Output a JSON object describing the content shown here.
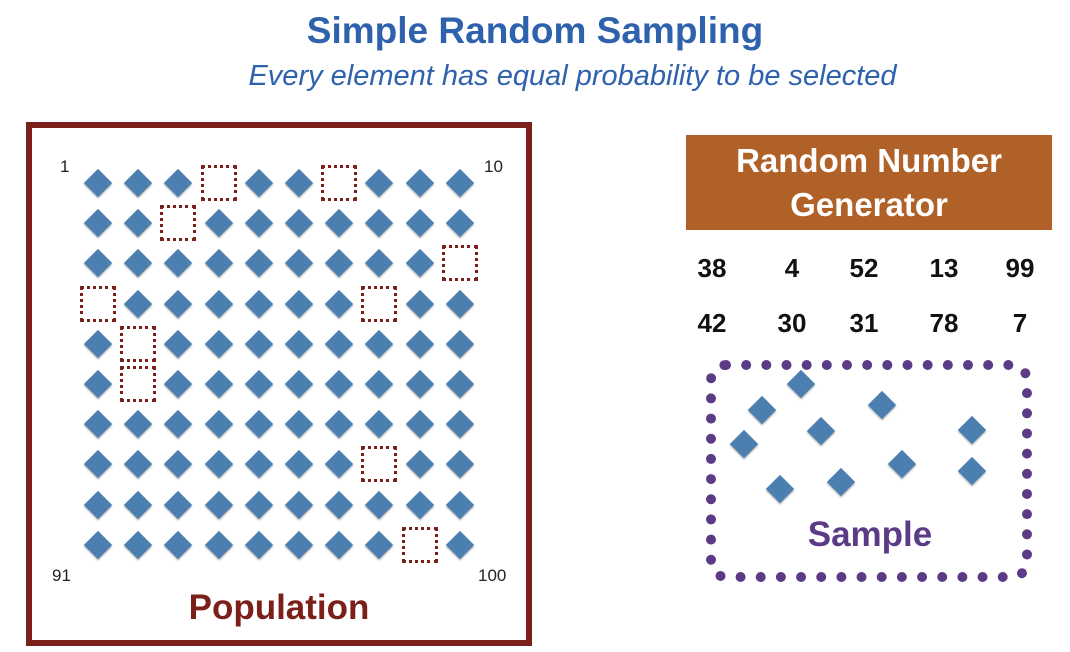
{
  "header": {
    "title": "Simple Random Sampling",
    "subtitle": "Every element has equal probability to be selected"
  },
  "population": {
    "label": "Population",
    "corner_labels": {
      "top_left": "1",
      "top_right": "10",
      "bottom_left": "91",
      "bottom_right": "100"
    },
    "grid_rows": 10,
    "grid_cols": 10,
    "selected_numbers": [
      38,
      4,
      52,
      13,
      99,
      42,
      30,
      31,
      78,
      7
    ]
  },
  "generator": {
    "title_line1": "Random Number",
    "title_line2": "Generator",
    "numbers": [
      "38",
      "4",
      "52",
      "13",
      "99",
      "42",
      "30",
      "31",
      "78",
      "7"
    ]
  },
  "sample": {
    "label": "Sample",
    "count": 10
  },
  "colors": {
    "title": "#2f62ad",
    "diamond": "#4a7fb0",
    "population_border": "#7b1f1a",
    "generator_bg": "#b06127",
    "sample_border": "#5b3b86"
  }
}
